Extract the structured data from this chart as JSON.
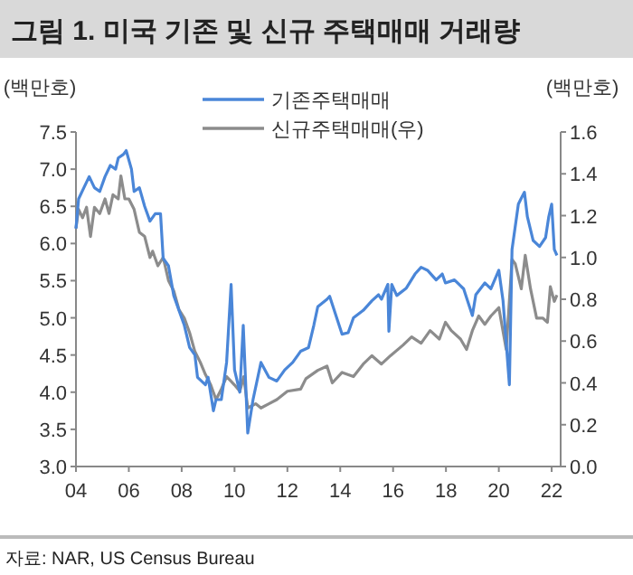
{
  "chart_data": {
    "type": "line",
    "title": "그림 1.  미국 기존 및 신규 주택매매 거래량",
    "ylabel": "(백만호)",
    "y2label": "(백만호)",
    "annotations": [
      "자료: NAR, US Census Bureau"
    ],
    "xlim": [
      2004,
      2022.34
    ],
    "xticks": [
      {
        "value": 2004,
        "label": "04"
      },
      {
        "value": 2006,
        "label": "06"
      },
      {
        "value": 2008,
        "label": "08"
      },
      {
        "value": 2010,
        "label": "10"
      },
      {
        "value": 2012,
        "label": "12"
      },
      {
        "value": 2014,
        "label": "14"
      },
      {
        "value": 2016,
        "label": "16"
      },
      {
        "value": 2018,
        "label": "18"
      },
      {
        "value": 2020,
        "label": "20"
      },
      {
        "value": 2022,
        "label": "22"
      }
    ],
    "ylim": [
      3.0,
      7.5
    ],
    "yticks": [
      {
        "value": 3.0,
        "label": "3.0"
      },
      {
        "value": 3.5,
        "label": "3.5"
      },
      {
        "value": 4.0,
        "label": "4.0"
      },
      {
        "value": 4.5,
        "label": "4.5"
      },
      {
        "value": 5.0,
        "label": "5.0"
      },
      {
        "value": 5.5,
        "label": "5.5"
      },
      {
        "value": 6.0,
        "label": "6.0"
      },
      {
        "value": 6.5,
        "label": "6.5"
      },
      {
        "value": 7.0,
        "label": "7.0"
      },
      {
        "value": 7.5,
        "label": "7.5"
      }
    ],
    "y2lim": [
      0,
      1.6
    ],
    "y2ticks": [
      {
        "value": 0,
        "label": "0.0"
      },
      {
        "value": 0.2,
        "label": "0.2"
      },
      {
        "value": 0.4,
        "label": "0.4"
      },
      {
        "value": 0.6,
        "label": "0.6"
      },
      {
        "value": 0.8,
        "label": "0.8"
      },
      {
        "value": 1.0,
        "label": "1.0"
      },
      {
        "value": 1.2,
        "label": "1.2"
      },
      {
        "value": 1.4,
        "label": "1.4"
      },
      {
        "value": 1.6,
        "label": "1.6"
      }
    ],
    "grid": false,
    "legend": "top",
    "marker": "none",
    "line_style": "solid",
    "series": [
      {
        "name": "기존주택매매",
        "color": "#4a86d8",
        "x": [
          2004.0,
          2004.1,
          2004.3,
          2004.5,
          2004.7,
          2004.9,
          2005.1,
          2005.3,
          2005.5,
          2005.6,
          2005.8,
          2005.9,
          2006.1,
          2006.2,
          2006.4,
          2006.6,
          2006.8,
          2007.0,
          2007.2,
          2007.3,
          2007.5,
          2007.7,
          2007.9,
          2008.1,
          2008.3,
          2008.5,
          2008.6,
          2008.9,
          2009.0,
          2009.2,
          2009.3,
          2009.5,
          2009.7,
          2009.87,
          2010.0,
          2010.2,
          2010.33,
          2010.5,
          2010.7,
          2011.0,
          2011.3,
          2011.6,
          2011.9,
          2012.2,
          2012.5,
          2012.8,
          2013.0,
          2013.15,
          2013.5,
          2013.6,
          2014.07,
          2014.3,
          2014.5,
          2014.87,
          2015.2,
          2015.45,
          2015.56,
          2015.8,
          2015.84,
          2015.95,
          2016.14,
          2016.5,
          2016.83,
          2017.06,
          2017.3,
          2017.63,
          2017.86,
          2017.98,
          2018.32,
          2018.67,
          2019.0,
          2019.13,
          2019.47,
          2019.7,
          2020.0,
          2020.16,
          2020.4,
          2020.5,
          2020.74,
          2020.85,
          2020.97,
          2021.08,
          2021.3,
          2021.54,
          2021.77,
          2021.89,
          2022.0,
          2022.1,
          2022.2
        ],
        "values": [
          6.2,
          6.6,
          6.75,
          6.9,
          6.75,
          6.7,
          6.9,
          7.05,
          7.0,
          7.15,
          7.2,
          7.25,
          7.0,
          6.7,
          6.75,
          6.5,
          6.3,
          6.4,
          6.4,
          5.8,
          5.7,
          5.3,
          5.1,
          4.9,
          4.6,
          4.5,
          4.2,
          4.1,
          4.2,
          3.75,
          3.9,
          3.9,
          4.4,
          5.45,
          4.3,
          4.0,
          4.9,
          3.45,
          3.9,
          4.4,
          4.2,
          4.15,
          4.3,
          4.4,
          4.55,
          4.6,
          4.9,
          5.15,
          5.25,
          5.29,
          4.78,
          4.8,
          5.0,
          5.1,
          5.23,
          5.31,
          5.25,
          5.45,
          4.82,
          5.45,
          5.3,
          5.4,
          5.59,
          5.68,
          5.64,
          5.51,
          5.59,
          5.47,
          5.51,
          5.39,
          5.03,
          5.31,
          5.47,
          5.39,
          5.64,
          5.23,
          4.1,
          5.92,
          6.53,
          6.61,
          6.69,
          6.36,
          6.04,
          5.96,
          6.08,
          6.36,
          6.53,
          5.92,
          5.84
        ]
      },
      {
        "name": "신규주택매매(우)",
        "color": "#8c8c8c",
        "axis": "y2",
        "x": [
          2004.0,
          2004.1,
          2004.25,
          2004.4,
          2004.55,
          2004.7,
          2004.9,
          2005.1,
          2005.25,
          2005.4,
          2005.6,
          2005.7,
          2005.85,
          2006.0,
          2006.2,
          2006.4,
          2006.6,
          2006.8,
          2006.9,
          2007.1,
          2007.3,
          2007.5,
          2007.7,
          2007.9,
          2008.1,
          2008.3,
          2008.5,
          2008.7,
          2008.9,
          2009.1,
          2009.3,
          2009.5,
          2009.7,
          2010.0,
          2010.2,
          2010.35,
          2010.5,
          2010.8,
          2011.0,
          2011.3,
          2011.6,
          2012.0,
          2012.5,
          2012.7,
          2013.15,
          2013.5,
          2013.7,
          2014.07,
          2014.5,
          2014.87,
          2015.2,
          2015.56,
          2015.9,
          2016.37,
          2016.7,
          2017.06,
          2017.4,
          2017.75,
          2017.98,
          2018.2,
          2018.55,
          2018.78,
          2019.0,
          2019.24,
          2019.47,
          2019.7,
          2020.0,
          2020.28,
          2020.5,
          2020.62,
          2020.85,
          2021.0,
          2021.2,
          2021.43,
          2021.66,
          2021.84,
          2021.95,
          2022.1,
          2022.2
        ],
        "values": [
          1.14,
          1.23,
          1.19,
          1.24,
          1.1,
          1.24,
          1.21,
          1.28,
          1.21,
          1.3,
          1.28,
          1.39,
          1.28,
          1.28,
          1.23,
          1.12,
          1.1,
          1.0,
          1.03,
          0.96,
          1.0,
          0.89,
          0.84,
          0.75,
          0.71,
          0.64,
          0.55,
          0.5,
          0.44,
          0.39,
          0.32,
          0.37,
          0.43,
          0.39,
          0.36,
          0.43,
          0.28,
          0.3,
          0.28,
          0.3,
          0.32,
          0.36,
          0.37,
          0.42,
          0.46,
          0.48,
          0.4,
          0.45,
          0.43,
          0.49,
          0.53,
          0.49,
          0.53,
          0.58,
          0.62,
          0.59,
          0.65,
          0.61,
          0.69,
          0.65,
          0.61,
          0.56,
          0.65,
          0.72,
          0.68,
          0.72,
          0.76,
          0.56,
          0.99,
          0.97,
          0.85,
          1.01,
          0.85,
          0.71,
          0.71,
          0.69,
          0.86,
          0.79,
          0.82
        ]
      }
    ]
  }
}
